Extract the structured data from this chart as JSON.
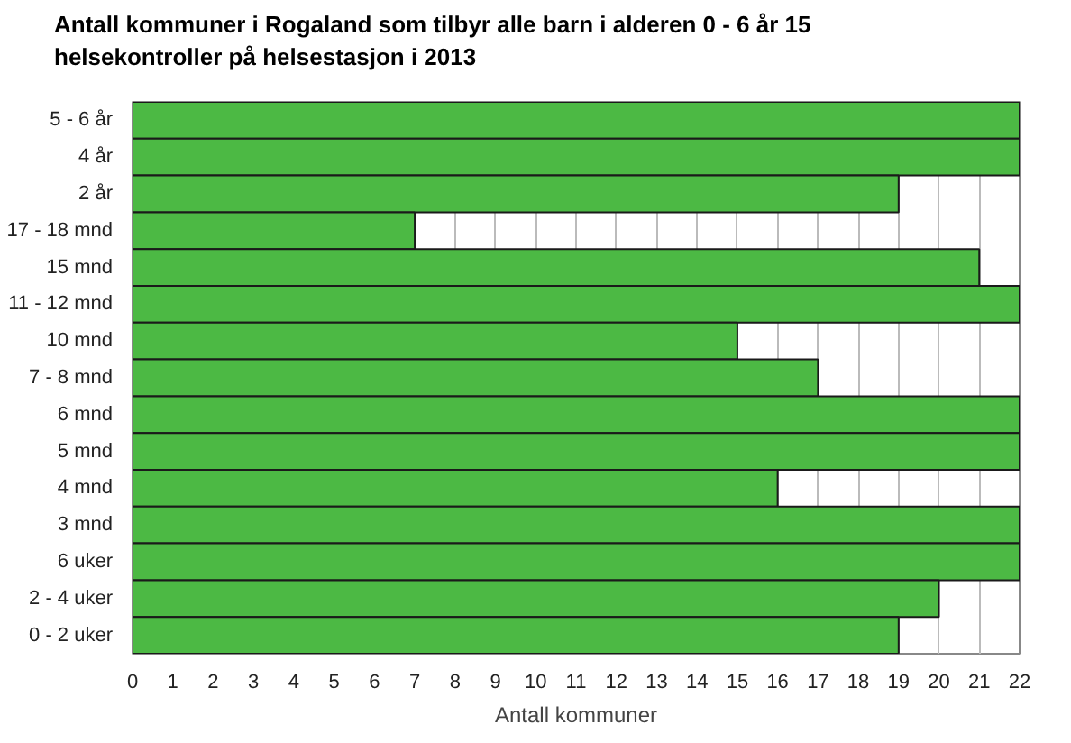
{
  "chart_data": {
    "type": "bar",
    "orientation": "horizontal",
    "title": "Antall kommuner i Rogaland som tilbyr alle barn i alderen 0 - 6 år 15 helsekontroller på helsestasjon i 2013",
    "xlabel": "Antall kommuner",
    "categories": [
      "5 - 6 år",
      "4 år",
      "2 år",
      "17 - 18 mnd",
      "15 mnd",
      "11 - 12 mnd",
      "10 mnd",
      "7 - 8 mnd",
      "6 mnd",
      "5 mnd",
      "4 mnd",
      "3 mnd",
      "6 uker",
      "2 - 4 uker",
      "0 - 2 uker"
    ],
    "values": [
      22,
      22,
      19,
      7,
      21,
      22,
      15,
      17,
      22,
      22,
      16,
      22,
      22,
      20,
      19
    ],
    "color": "#4cb944",
    "xlim": [
      0,
      22
    ],
    "xticks": [
      0,
      1,
      2,
      3,
      4,
      5,
      6,
      7,
      8,
      9,
      10,
      11,
      12,
      13,
      14,
      15,
      16,
      17,
      18,
      19,
      20,
      21,
      22
    ],
    "grid": "x"
  }
}
